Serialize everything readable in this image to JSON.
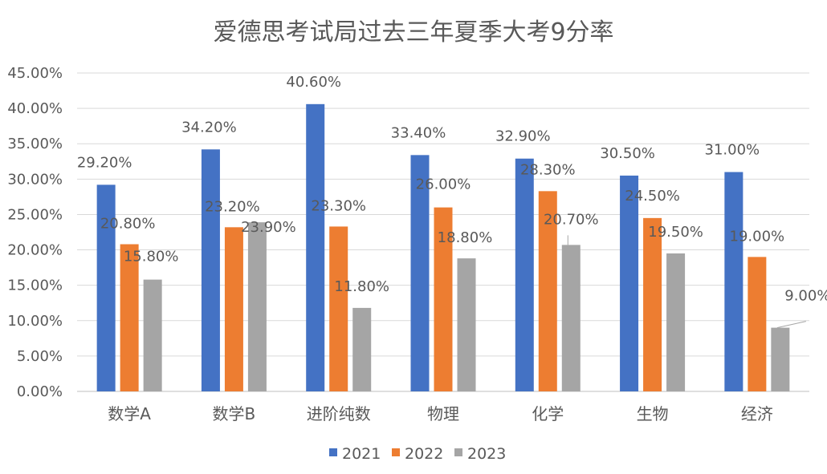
{
  "chart_data": {
    "type": "bar",
    "title": "爱德思考试局过去三年夏季大考9分率",
    "categories": [
      "数学A",
      "数学B",
      "进阶纯数",
      "物理",
      "化学",
      "生物",
      "经济"
    ],
    "series": [
      {
        "name": "2021",
        "color": "#4472c4",
        "values": [
          29.2,
          34.2,
          40.6,
          33.4,
          32.9,
          30.5,
          31.0
        ],
        "labels": [
          "29.20%",
          "34.20%",
          "40.60%",
          "33.40%",
          "32.90%",
          "30.50%",
          "31.00%"
        ]
      },
      {
        "name": "2022",
        "color": "#ed7d31",
        "values": [
          20.8,
          23.2,
          23.3,
          26.0,
          28.3,
          24.5,
          19.0
        ],
        "labels": [
          "20.80%",
          "23.20%",
          "23.30%",
          "26.00%",
          "28.30%",
          "24.50%",
          "19.00%"
        ]
      },
      {
        "name": "2023",
        "color": "#a5a5a5",
        "values": [
          15.8,
          23.9,
          11.8,
          18.8,
          20.7,
          19.5,
          9.0
        ],
        "labels": [
          "15.80%",
          "23.90%",
          "11.80%",
          "18.80%",
          "20.70%",
          "19.50%",
          "9.00%"
        ]
      }
    ],
    "yticks": [
      "0.00%",
      "5.00%",
      "10.00%",
      "15.00%",
      "20.00%",
      "25.00%",
      "30.00%",
      "35.00%",
      "40.00%",
      "45.00%"
    ],
    "ylim": [
      0,
      45
    ],
    "grid": true,
    "legend": "bottom"
  }
}
